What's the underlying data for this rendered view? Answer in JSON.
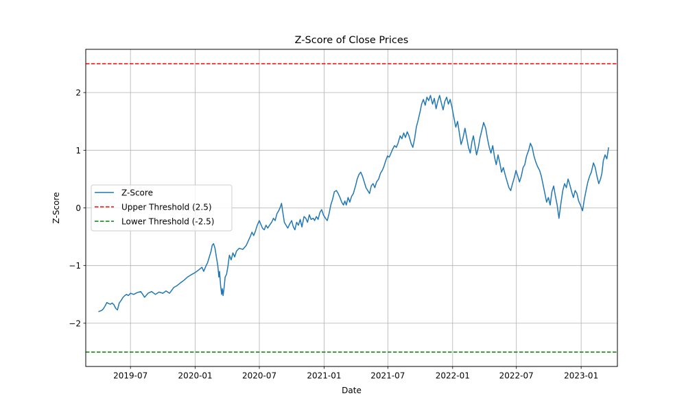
{
  "chart_data": {
    "type": "line",
    "title": "Z-Score of Close Prices",
    "xlabel": "Date",
    "ylabel": "Z-Score",
    "xlim": [
      "2019-02-24",
      "2023-04-14"
    ],
    "ylim": [
      -2.75,
      2.75
    ],
    "x_ticks": [
      "2019-07",
      "2020-01",
      "2020-07",
      "2021-01",
      "2021-07",
      "2022-01",
      "2022-07",
      "2023-01"
    ],
    "y_ticks": [
      -2,
      -1,
      0,
      1,
      2
    ],
    "y_tick_labels": [
      "−2",
      "−1",
      "0",
      "1",
      "2"
    ],
    "grid": true,
    "legend_position": "center-left",
    "colors": {
      "zscore": "#1f77b4",
      "upper": "#ff0000",
      "lower": "#008000",
      "grid": "#b0b0b0"
    },
    "series": [
      {
        "name": "Z-Score",
        "style": "solid",
        "points": [
          [
            "2019-04-01",
            -1.8
          ],
          [
            "2019-04-05",
            -1.79
          ],
          [
            "2019-04-10",
            -1.78
          ],
          [
            "2019-04-15",
            -1.75
          ],
          [
            "2019-04-20",
            -1.7
          ],
          [
            "2019-04-25",
            -1.64
          ],
          [
            "2019-04-30",
            -1.66
          ],
          [
            "2019-05-05",
            -1.67
          ],
          [
            "2019-05-10",
            -1.65
          ],
          [
            "2019-05-15",
            -1.68
          ],
          [
            "2019-05-20",
            -1.74
          ],
          [
            "2019-05-25",
            -1.77
          ],
          [
            "2019-05-30",
            -1.65
          ],
          [
            "2019-06-05",
            -1.6
          ],
          [
            "2019-06-10",
            -1.55
          ],
          [
            "2019-06-15",
            -1.52
          ],
          [
            "2019-06-20",
            -1.5
          ],
          [
            "2019-06-25",
            -1.52
          ],
          [
            "2019-07-01",
            -1.48
          ],
          [
            "2019-07-10",
            -1.5
          ],
          [
            "2019-07-20",
            -1.47
          ],
          [
            "2019-07-30",
            -1.45
          ],
          [
            "2019-08-05",
            -1.5
          ],
          [
            "2019-08-10",
            -1.55
          ],
          [
            "2019-08-20",
            -1.48
          ],
          [
            "2019-08-30",
            -1.45
          ],
          [
            "2019-09-10",
            -1.5
          ],
          [
            "2019-09-20",
            -1.46
          ],
          [
            "2019-10-01",
            -1.48
          ],
          [
            "2019-10-10",
            -1.44
          ],
          [
            "2019-10-20",
            -1.48
          ],
          [
            "2019-11-01",
            -1.38
          ],
          [
            "2019-11-10",
            -1.35
          ],
          [
            "2019-11-20",
            -1.3
          ],
          [
            "2019-12-01",
            -1.25
          ],
          [
            "2019-12-10",
            -1.2
          ],
          [
            "2019-12-20",
            -1.16
          ],
          [
            "2020-01-01",
            -1.12
          ],
          [
            "2020-01-10",
            -1.08
          ],
          [
            "2020-01-20",
            -1.03
          ],
          [
            "2020-01-25",
            -1.1
          ],
          [
            "2020-02-01",
            -1.0
          ],
          [
            "2020-02-05",
            -0.95
          ],
          [
            "2020-02-10",
            -0.85
          ],
          [
            "2020-02-15",
            -0.75
          ],
          [
            "2020-02-18",
            -0.65
          ],
          [
            "2020-02-22",
            -0.62
          ],
          [
            "2020-02-26",
            -0.7
          ],
          [
            "2020-03-01",
            -0.85
          ],
          [
            "2020-03-05",
            -1.0
          ],
          [
            "2020-03-08",
            -1.2
          ],
          [
            "2020-03-10",
            -1.1
          ],
          [
            "2020-03-13",
            -1.35
          ],
          [
            "2020-03-16",
            -1.5
          ],
          [
            "2020-03-18",
            -1.4
          ],
          [
            "2020-03-20",
            -1.52
          ],
          [
            "2020-03-23",
            -1.38
          ],
          [
            "2020-03-26",
            -1.2
          ],
          [
            "2020-03-30",
            -1.15
          ],
          [
            "2020-04-03",
            -1.0
          ],
          [
            "2020-04-07",
            -0.82
          ],
          [
            "2020-04-12",
            -0.9
          ],
          [
            "2020-04-17",
            -0.78
          ],
          [
            "2020-04-22",
            -0.85
          ],
          [
            "2020-04-27",
            -0.75
          ],
          [
            "2020-05-05",
            -0.7
          ],
          [
            "2020-05-15",
            -0.72
          ],
          [
            "2020-05-25",
            -0.65
          ],
          [
            "2020-06-05",
            -0.5
          ],
          [
            "2020-06-10",
            -0.42
          ],
          [
            "2020-06-15",
            -0.48
          ],
          [
            "2020-06-20",
            -0.4
          ],
          [
            "2020-06-25",
            -0.3
          ],
          [
            "2020-07-01",
            -0.22
          ],
          [
            "2020-07-05",
            -0.28
          ],
          [
            "2020-07-10",
            -0.35
          ],
          [
            "2020-07-15",
            -0.38
          ],
          [
            "2020-07-20",
            -0.3
          ],
          [
            "2020-07-25",
            -0.35
          ],
          [
            "2020-07-30",
            -0.3
          ],
          [
            "2020-08-05",
            -0.25
          ],
          [
            "2020-08-10",
            -0.18
          ],
          [
            "2020-08-15",
            -0.22
          ],
          [
            "2020-08-20",
            -0.1
          ],
          [
            "2020-08-25",
            -0.05
          ],
          [
            "2020-08-30",
            0.02
          ],
          [
            "2020-09-02",
            0.08
          ],
          [
            "2020-09-05",
            -0.05
          ],
          [
            "2020-09-10",
            -0.25
          ],
          [
            "2020-09-15",
            -0.3
          ],
          [
            "2020-09-20",
            -0.35
          ],
          [
            "2020-09-25",
            -0.28
          ],
          [
            "2020-10-01",
            -0.22
          ],
          [
            "2020-10-05",
            -0.32
          ],
          [
            "2020-10-10",
            -0.38
          ],
          [
            "2020-10-15",
            -0.25
          ],
          [
            "2020-10-20",
            -0.3
          ],
          [
            "2020-10-25",
            -0.2
          ],
          [
            "2020-10-30",
            -0.33
          ],
          [
            "2020-11-05",
            -0.15
          ],
          [
            "2020-11-10",
            -0.18
          ],
          [
            "2020-11-15",
            -0.25
          ],
          [
            "2020-11-20",
            -0.12
          ],
          [
            "2020-11-25",
            -0.2
          ],
          [
            "2020-12-01",
            -0.18
          ],
          [
            "2020-12-05",
            -0.22
          ],
          [
            "2020-12-10",
            -0.15
          ],
          [
            "2020-12-15",
            -0.2
          ],
          [
            "2020-12-20",
            -0.08
          ],
          [
            "2020-12-25",
            -0.03
          ],
          [
            "2020-12-30",
            -0.12
          ],
          [
            "2021-01-05",
            -0.18
          ],
          [
            "2021-01-10",
            -0.22
          ],
          [
            "2021-01-15",
            -0.1
          ],
          [
            "2021-01-20",
            0.05
          ],
          [
            "2021-01-25",
            0.15
          ],
          [
            "2021-01-30",
            0.28
          ],
          [
            "2021-02-05",
            0.3
          ],
          [
            "2021-02-10",
            0.25
          ],
          [
            "2021-02-15",
            0.18
          ],
          [
            "2021-02-20",
            0.1
          ],
          [
            "2021-02-25",
            0.05
          ],
          [
            "2021-03-01",
            0.12
          ],
          [
            "2021-03-05",
            0.05
          ],
          [
            "2021-03-10",
            0.18
          ],
          [
            "2021-03-15",
            0.1
          ],
          [
            "2021-03-20",
            0.2
          ],
          [
            "2021-03-25",
            0.25
          ],
          [
            "2021-04-01",
            0.4
          ],
          [
            "2021-04-05",
            0.5
          ],
          [
            "2021-04-10",
            0.58
          ],
          [
            "2021-04-15",
            0.62
          ],
          [
            "2021-04-20",
            0.55
          ],
          [
            "2021-04-25",
            0.45
          ],
          [
            "2021-04-30",
            0.35
          ],
          [
            "2021-05-05",
            0.3
          ],
          [
            "2021-05-10",
            0.25
          ],
          [
            "2021-05-15",
            0.38
          ],
          [
            "2021-05-20",
            0.42
          ],
          [
            "2021-05-25",
            0.35
          ],
          [
            "2021-05-30",
            0.45
          ],
          [
            "2021-06-05",
            0.5
          ],
          [
            "2021-06-10",
            0.6
          ],
          [
            "2021-06-15",
            0.65
          ],
          [
            "2021-06-20",
            0.72
          ],
          [
            "2021-06-25",
            0.82
          ],
          [
            "2021-06-30",
            0.9
          ],
          [
            "2021-07-05",
            0.88
          ],
          [
            "2021-07-10",
            0.95
          ],
          [
            "2021-07-15",
            1.02
          ],
          [
            "2021-07-20",
            1.08
          ],
          [
            "2021-07-25",
            1.05
          ],
          [
            "2021-07-30",
            1.12
          ],
          [
            "2021-08-05",
            1.25
          ],
          [
            "2021-08-10",
            1.2
          ],
          [
            "2021-08-15",
            1.3
          ],
          [
            "2021-08-20",
            1.22
          ],
          [
            "2021-08-25",
            1.32
          ],
          [
            "2021-08-30",
            1.25
          ],
          [
            "2021-09-05",
            1.12
          ],
          [
            "2021-09-10",
            1.05
          ],
          [
            "2021-09-15",
            1.2
          ],
          [
            "2021-09-20",
            1.4
          ],
          [
            "2021-09-25",
            1.52
          ],
          [
            "2021-10-01",
            1.68
          ],
          [
            "2021-10-05",
            1.8
          ],
          [
            "2021-10-10",
            1.88
          ],
          [
            "2021-10-15",
            1.78
          ],
          [
            "2021-10-20",
            1.92
          ],
          [
            "2021-10-25",
            1.86
          ],
          [
            "2021-10-30",
            1.95
          ],
          [
            "2021-11-05",
            1.8
          ],
          [
            "2021-11-10",
            1.9
          ],
          [
            "2021-11-15",
            1.72
          ],
          [
            "2021-11-20",
            1.85
          ],
          [
            "2021-11-25",
            1.95
          ],
          [
            "2021-11-30",
            1.82
          ],
          [
            "2021-12-05",
            1.7
          ],
          [
            "2021-12-10",
            1.85
          ],
          [
            "2021-12-15",
            1.92
          ],
          [
            "2021-12-20",
            1.8
          ],
          [
            "2021-12-25",
            1.88
          ],
          [
            "2021-12-30",
            1.75
          ],
          [
            "2022-01-05",
            1.55
          ],
          [
            "2022-01-10",
            1.4
          ],
          [
            "2022-01-15",
            1.5
          ],
          [
            "2022-01-20",
            1.3
          ],
          [
            "2022-01-25",
            1.1
          ],
          [
            "2022-01-30",
            1.2
          ],
          [
            "2022-02-05",
            1.38
          ],
          [
            "2022-02-10",
            1.22
          ],
          [
            "2022-02-15",
            1.05
          ],
          [
            "2022-02-20",
            0.95
          ],
          [
            "2022-02-25",
            1.15
          ],
          [
            "2022-03-01",
            1.25
          ],
          [
            "2022-03-05",
            1.1
          ],
          [
            "2022-03-10",
            0.92
          ],
          [
            "2022-03-15",
            1.05
          ],
          [
            "2022-03-20",
            1.22
          ],
          [
            "2022-03-25",
            1.35
          ],
          [
            "2022-03-30",
            1.48
          ],
          [
            "2022-04-05",
            1.38
          ],
          [
            "2022-04-10",
            1.2
          ],
          [
            "2022-04-15",
            1.05
          ],
          [
            "2022-04-20",
            0.95
          ],
          [
            "2022-04-25",
            1.08
          ],
          [
            "2022-04-30",
            0.88
          ],
          [
            "2022-05-05",
            0.75
          ],
          [
            "2022-05-10",
            0.92
          ],
          [
            "2022-05-15",
            0.78
          ],
          [
            "2022-05-20",
            0.62
          ],
          [
            "2022-05-25",
            0.7
          ],
          [
            "2022-05-30",
            0.58
          ],
          [
            "2022-06-05",
            0.45
          ],
          [
            "2022-06-10",
            0.35
          ],
          [
            "2022-06-15",
            0.3
          ],
          [
            "2022-06-20",
            0.42
          ],
          [
            "2022-06-25",
            0.52
          ],
          [
            "2022-06-30",
            0.65
          ],
          [
            "2022-07-05",
            0.55
          ],
          [
            "2022-07-10",
            0.45
          ],
          [
            "2022-07-15",
            0.55
          ],
          [
            "2022-07-20",
            0.7
          ],
          [
            "2022-07-25",
            0.75
          ],
          [
            "2022-07-30",
            0.9
          ],
          [
            "2022-08-05",
            1.0
          ],
          [
            "2022-08-10",
            1.12
          ],
          [
            "2022-08-15",
            1.05
          ],
          [
            "2022-08-20",
            0.9
          ],
          [
            "2022-08-25",
            0.8
          ],
          [
            "2022-08-30",
            0.72
          ],
          [
            "2022-09-05",
            0.65
          ],
          [
            "2022-09-10",
            0.55
          ],
          [
            "2022-09-15",
            0.4
          ],
          [
            "2022-09-20",
            0.25
          ],
          [
            "2022-09-25",
            0.1
          ],
          [
            "2022-09-30",
            0.18
          ],
          [
            "2022-10-05",
            0.05
          ],
          [
            "2022-10-10",
            0.28
          ],
          [
            "2022-10-15",
            0.38
          ],
          [
            "2022-10-20",
            0.2
          ],
          [
            "2022-10-25",
            0.05
          ],
          [
            "2022-10-30",
            -0.18
          ],
          [
            "2022-11-05",
            0.1
          ],
          [
            "2022-11-10",
            0.3
          ],
          [
            "2022-11-15",
            0.42
          ],
          [
            "2022-11-20",
            0.35
          ],
          [
            "2022-11-25",
            0.5
          ],
          [
            "2022-11-30",
            0.4
          ],
          [
            "2022-12-05",
            0.28
          ],
          [
            "2022-12-10",
            0.18
          ],
          [
            "2022-12-15",
            0.3
          ],
          [
            "2022-12-20",
            0.25
          ],
          [
            "2022-12-25",
            0.12
          ],
          [
            "2022-12-30",
            0.05
          ],
          [
            "2023-01-05",
            -0.05
          ],
          [
            "2023-01-10",
            0.15
          ],
          [
            "2023-01-15",
            0.3
          ],
          [
            "2023-01-20",
            0.45
          ],
          [
            "2023-01-25",
            0.55
          ],
          [
            "2023-01-30",
            0.62
          ],
          [
            "2023-02-05",
            0.78
          ],
          [
            "2023-02-10",
            0.7
          ],
          [
            "2023-02-15",
            0.55
          ],
          [
            "2023-02-20",
            0.42
          ],
          [
            "2023-02-25",
            0.5
          ],
          [
            "2023-03-01",
            0.6
          ],
          [
            "2023-03-05",
            0.82
          ],
          [
            "2023-03-10",
            0.92
          ],
          [
            "2023-03-15",
            0.85
          ],
          [
            "2023-03-20",
            1.05
          ]
        ]
      },
      {
        "name": "Upper Threshold (2.5)",
        "style": "dashed",
        "value": 2.5
      },
      {
        "name": "Lower Threshold (-2.5)",
        "style": "dashed",
        "value": -2.5
      }
    ]
  }
}
